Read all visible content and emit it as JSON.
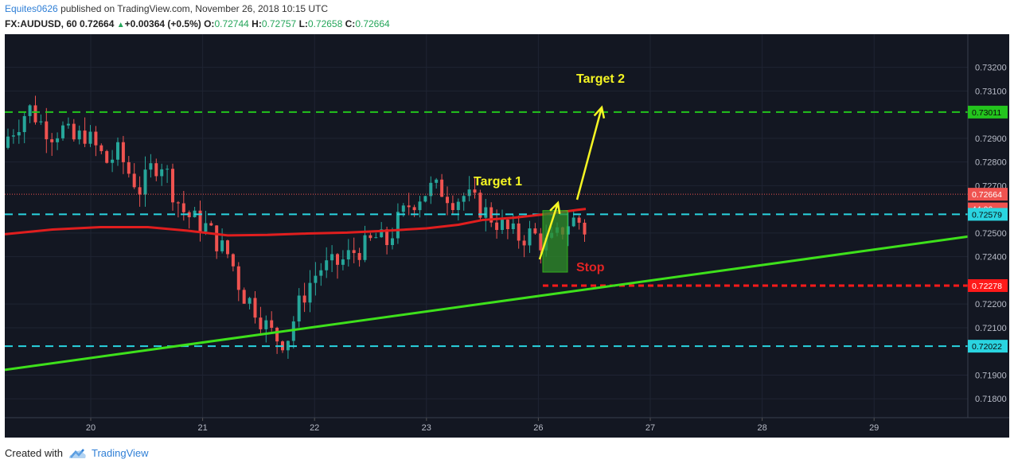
{
  "header": {
    "author": "Equites0626",
    "published_text": "published on TradingView.com, November 26, 2018 10:15 UTC",
    "symbol": "FX:AUDUSD, 60",
    "last": "0.72664",
    "change": "+0.00364 (+0.5%)",
    "o_label": "O:",
    "o_value": "0.72744",
    "h_label": "H:",
    "h_value": "0.72757",
    "l_label": "L:",
    "l_value": "0.72658",
    "c_label": "C:",
    "c_value": "0.72664"
  },
  "footer": {
    "created_with": "Created with",
    "brand": "TradingView"
  },
  "colors": {
    "background": "#131722",
    "up": "#26a69a",
    "down": "#ef5350",
    "ma": "#e01e1e",
    "trendline": "#3ee11b",
    "target_line": "#23c41d",
    "support_line": "#2ad4e0",
    "stop_line": "#ff1a1a",
    "annotation": "#f5f523"
  },
  "chart_data": {
    "type": "candlestick",
    "x_ticks": [
      "20",
      "21",
      "22",
      "23",
      "26",
      "27",
      "28",
      "29"
    ],
    "y_ticks": [
      "0.73200",
      "0.73100",
      "0.72900",
      "0.72800",
      "0.72700",
      "0.72500",
      "0.72400",
      "0.72200",
      "0.72100",
      "0.71900",
      "0.71800"
    ],
    "ylim": [
      0.7172,
      0.7334
    ],
    "price_labels": [
      {
        "text": "0.73011",
        "value": 0.73011,
        "color": "#23c41d"
      },
      {
        "text": "0.72664",
        "value": 0.72664,
        "color": "#ef5350"
      },
      {
        "text": "44:06",
        "value": 0.72602,
        "color": "#ef5350"
      },
      {
        "text": "0.72579",
        "value": 0.72579,
        "color": "#2ad4e0"
      },
      {
        "text": "0.72278",
        "value": 0.72278,
        "color": "#ff1a1a"
      },
      {
        "text": "0.72022",
        "value": 0.72022,
        "color": "#2ad4e0"
      }
    ],
    "horizontal_lines": [
      {
        "name": "target-2-level",
        "value": 0.73011,
        "style": "dashed"
      },
      {
        "name": "resistance-level",
        "value": 0.72579,
        "style": "dashed"
      },
      {
        "name": "support-level",
        "value": 0.72022,
        "style": "dashed"
      },
      {
        "name": "last-price-level",
        "value": 0.72664,
        "style": "dotted"
      }
    ],
    "annotations": [
      {
        "text": "Target 2",
        "kind": "target-2-label"
      },
      {
        "text": "Target 1",
        "kind": "target-1-label"
      },
      {
        "text": "Stop",
        "kind": "stop-label"
      }
    ],
    "close_path": [
      [
        0.0,
        0.729
      ],
      [
        0.1,
        0.7296
      ],
      [
        0.2,
        0.7303
      ],
      [
        0.3,
        0.7297
      ],
      [
        0.4,
        0.7292
      ],
      [
        0.5,
        0.7294
      ],
      [
        0.6,
        0.7289
      ],
      [
        0.7,
        0.7292
      ],
      [
        0.8,
        0.7286
      ],
      [
        0.9,
        0.728
      ],
      [
        1.0,
        0.7284
      ],
      [
        1.1,
        0.7275
      ],
      [
        1.2,
        0.7268
      ],
      [
        1.3,
        0.7278
      ],
      [
        1.4,
        0.728
      ],
      [
        1.5,
        0.7266
      ],
      [
        1.6,
        0.7258
      ],
      [
        1.7,
        0.7255
      ],
      [
        1.8,
        0.7252
      ],
      [
        1.9,
        0.7245
      ],
      [
        2.0,
        0.724
      ],
      [
        2.1,
        0.7225
      ],
      [
        2.2,
        0.722
      ],
      [
        2.3,
        0.7212
      ],
      [
        2.4,
        0.7206
      ],
      [
        2.5,
        0.7204
      ],
      [
        2.6,
        0.7218
      ],
      [
        2.7,
        0.7228
      ],
      [
        2.8,
        0.7235
      ],
      [
        2.9,
        0.7236
      ],
      [
        3.0,
        0.7238
      ],
      [
        3.1,
        0.7242
      ],
      [
        3.2,
        0.7244
      ],
      [
        3.3,
        0.7248
      ],
      [
        3.4,
        0.7246
      ],
      [
        3.5,
        0.7255
      ],
      [
        3.6,
        0.7262
      ],
      [
        3.7,
        0.7266
      ],
      [
        3.8,
        0.7269
      ],
      [
        3.9,
        0.7268
      ],
      [
        4.0,
        0.7264
      ],
      [
        4.1,
        0.7266
      ],
      [
        4.2,
        0.7262
      ],
      [
        4.3,
        0.7258
      ],
      [
        4.4,
        0.7254
      ],
      [
        4.5,
        0.725
      ],
      [
        4.6,
        0.7248
      ],
      [
        4.7,
        0.725
      ],
      [
        4.8,
        0.7245
      ],
      [
        4.9,
        0.7247
      ],
      [
        5.0,
        0.7254
      ],
      [
        5.1,
        0.7256
      ],
      [
        5.2,
        0.7249
      ],
      [
        5.3,
        0.7246
      ],
      [
        5.4,
        0.7251
      ],
      [
        5.5,
        0.7254
      ],
      [
        5.6,
        0.7257
      ],
      [
        5.7,
        0.7255
      ],
      [
        5.8,
        0.7253
      ],
      [
        5.9,
        0.725
      ],
      [
        6.0,
        0.7252
      ],
      [
        6.1,
        0.7254
      ],
      [
        6.2,
        0.7256
      ],
      [
        6.3,
        0.7254
      ],
      [
        6.4,
        0.7252
      ],
      [
        6.5,
        0.7255
      ],
      [
        6.6,
        0.7253
      ],
      [
        6.7,
        0.7248
      ],
      [
        6.8,
        0.7245
      ],
      [
        6.9,
        0.7248
      ],
      [
        7.0,
        0.7243
      ],
      [
        7.1,
        0.7238
      ],
      [
        7.2,
        0.7232
      ],
      [
        7.3,
        0.7227
      ],
      [
        7.4,
        0.7224
      ],
      [
        7.5,
        0.7226
      ],
      [
        7.6,
        0.7228
      ],
      [
        7.7,
        0.7233
      ],
      [
        7.8,
        0.7231
      ],
      [
        7.9,
        0.7226
      ],
      [
        8.0,
        0.723
      ],
      [
        8.1,
        0.7229
      ],
      [
        8.2,
        0.7226
      ],
      [
        8.3,
        0.7228
      ],
      [
        8.4,
        0.7232
      ],
      [
        8.5,
        0.7236
      ],
      [
        8.6,
        0.7234
      ],
      [
        8.7,
        0.7238
      ],
      [
        8.8,
        0.7235
      ],
      [
        8.9,
        0.7246
      ],
      [
        9.0,
        0.7256
      ],
      [
        9.1,
        0.7262
      ],
      [
        9.2,
        0.7268
      ],
      [
        9.3,
        0.7275
      ],
      [
        9.4,
        0.7266
      ]
    ]
  }
}
